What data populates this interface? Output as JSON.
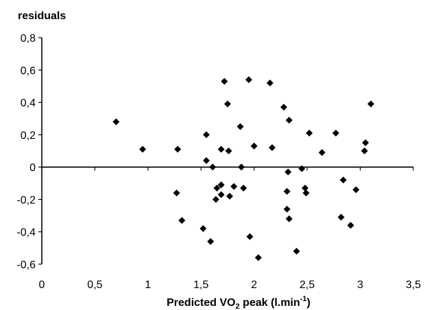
{
  "chart_data": {
    "type": "scatter",
    "title": "",
    "ylabel": "residuals",
    "xlabel": {
      "prefix": "Predicted VO",
      "subscript": "2",
      "middle": " peak (l.min",
      "superscript": "-1",
      "suffix": ")"
    },
    "xlim": [
      0,
      3.5
    ],
    "ylim": [
      -0.6,
      0.8
    ],
    "xticks": [
      0,
      0.5,
      1,
      1.5,
      2,
      2.5,
      3,
      3.5
    ],
    "xtick_labels": [
      "0",
      "0,5",
      "1",
      "1,5",
      "2",
      "2,5",
      "3",
      "3,5"
    ],
    "yticks": [
      0.8,
      0.6,
      0.4,
      0.2,
      0,
      -0.2,
      -0.4,
      -0.6
    ],
    "ytick_labels": [
      "0,8",
      "0,6",
      "0,4",
      "0,2",
      "0",
      "-0,2",
      "-0,4",
      "-0,6"
    ],
    "grid": false,
    "marker": "diamond",
    "points": [
      [
        0.7,
        0.28
      ],
      [
        0.95,
        0.11
      ],
      [
        1.28,
        0.11
      ],
      [
        1.27,
        -0.16
      ],
      [
        1.32,
        -0.33
      ],
      [
        1.52,
        -0.38
      ],
      [
        1.55,
        0.2
      ],
      [
        1.55,
        0.04
      ],
      [
        1.59,
        -0.46
      ],
      [
        1.61,
        0.0
      ],
      [
        1.64,
        -0.2
      ],
      [
        1.65,
        -0.13
      ],
      [
        1.69,
        -0.11
      ],
      [
        1.69,
        -0.17
      ],
      [
        1.69,
        0.11
      ],
      [
        1.72,
        0.53
      ],
      [
        1.75,
        0.39
      ],
      [
        1.76,
        0.1
      ],
      [
        1.77,
        -0.18
      ],
      [
        1.81,
        -0.12
      ],
      [
        1.87,
        0.25
      ],
      [
        1.88,
        0.0
      ],
      [
        1.9,
        -0.13
      ],
      [
        1.95,
        0.54
      ],
      [
        1.96,
        -0.43
      ],
      [
        2.0,
        0.13
      ],
      [
        2.04,
        -0.56
      ],
      [
        2.15,
        0.52
      ],
      [
        2.17,
        0.12
      ],
      [
        2.28,
        0.37
      ],
      [
        2.31,
        -0.15
      ],
      [
        2.31,
        -0.26
      ],
      [
        2.32,
        -0.03
      ],
      [
        2.33,
        0.29
      ],
      [
        2.33,
        -0.32
      ],
      [
        2.4,
        -0.52
      ],
      [
        2.45,
        -0.01
      ],
      [
        2.48,
        -0.13
      ],
      [
        2.49,
        -0.16
      ],
      [
        2.52,
        0.21
      ],
      [
        2.64,
        0.09
      ],
      [
        2.77,
        0.21
      ],
      [
        2.82,
        -0.31
      ],
      [
        2.84,
        -0.08
      ],
      [
        2.91,
        -0.36
      ],
      [
        2.96,
        -0.14
      ],
      [
        3.04,
        0.1
      ],
      [
        3.05,
        0.15
      ],
      [
        3.1,
        0.39
      ]
    ]
  }
}
